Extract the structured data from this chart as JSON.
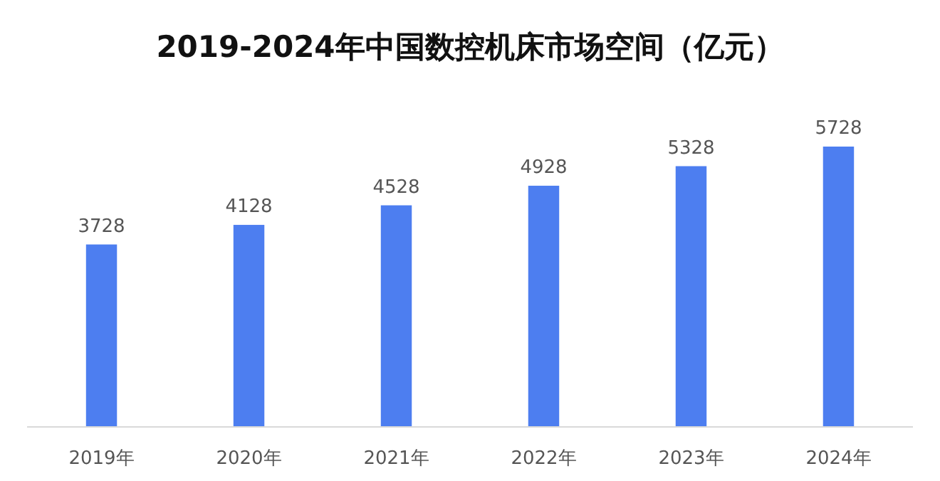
{
  "chart_data": {
    "type": "bar",
    "title": "2019-2024年中国数控机床市场空间（亿元）",
    "categories": [
      "2019年",
      "2020年",
      "2021年",
      "2022年",
      "2023年",
      "2024年"
    ],
    "values": [
      3728,
      4128,
      4528,
      4928,
      5328,
      5728
    ],
    "color": "#4d7ef0",
    "data_labels": true
  }
}
